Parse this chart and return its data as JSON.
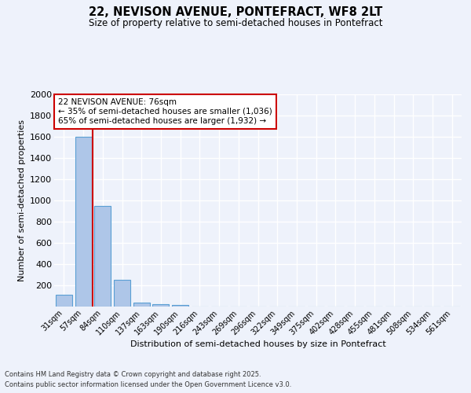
{
  "title_line1": "22, NEVISON AVENUE, PONTEFRACT, WF8 2LT",
  "title_line2": "Size of property relative to semi-detached houses in Pontefract",
  "xlabel": "Distribution of semi-detached houses by size in Pontefract",
  "ylabel": "Number of semi-detached properties",
  "footer_line1": "Contains HM Land Registry data © Crown copyright and database right 2025.",
  "footer_line2": "Contains public sector information licensed under the Open Government Licence v3.0.",
  "bar_categories": [
    "31sqm",
    "57sqm",
    "84sqm",
    "110sqm",
    "137sqm",
    "163sqm",
    "190sqm",
    "216sqm",
    "243sqm",
    "269sqm",
    "296sqm",
    "322sqm",
    "349sqm",
    "375sqm",
    "402sqm",
    "428sqm",
    "455sqm",
    "481sqm",
    "508sqm",
    "534sqm",
    "561sqm"
  ],
  "bar_values": [
    110,
    1600,
    950,
    255,
    35,
    20,
    15,
    0,
    0,
    0,
    0,
    0,
    0,
    0,
    0,
    0,
    0,
    0,
    0,
    0,
    0
  ],
  "bar_color": "#aec6e8",
  "bar_edge_color": "#5a9fd4",
  "ylim": [
    0,
    2000
  ],
  "yticks": [
    0,
    200,
    400,
    600,
    800,
    1000,
    1200,
    1400,
    1600,
    1800,
    2000
  ],
  "red_line_color": "#cc0000",
  "annotation_box_text_line1": "22 NEVISON AVENUE: 76sqm",
  "annotation_box_text_line2": "← 35% of semi-detached houses are smaller (1,036)",
  "annotation_box_text_line3": "65% of semi-detached houses are larger (1,932) →",
  "annotation_box_edge_color": "#cc0000",
  "annotation_box_face_color": "#ffffff",
  "background_color": "#eef2fb",
  "grid_color": "#ffffff",
  "property_sqm": 76
}
